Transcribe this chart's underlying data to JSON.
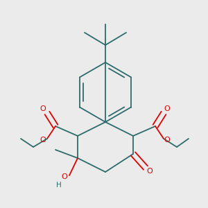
{
  "bg_color": "#ebebeb",
  "bond_color": "#2d6b6b",
  "red_color": "#e00000",
  "line_width": 1.3,
  "fig_size": [
    3.0,
    3.0
  ],
  "dpi": 100,
  "xlim": [
    0,
    300
  ],
  "ylim": [
    0,
    300
  ]
}
